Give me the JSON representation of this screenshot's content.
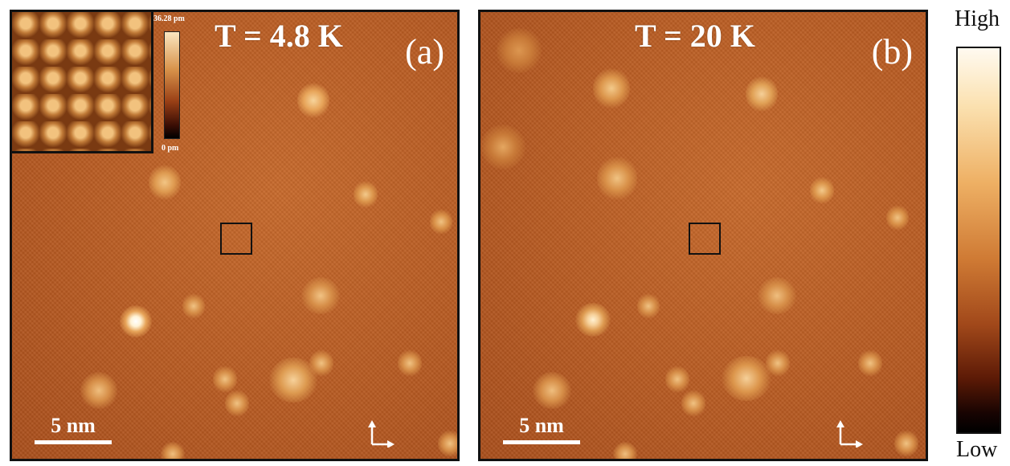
{
  "panels": [
    {
      "id": "a",
      "title": "T = 4.8 K",
      "label": "(a)",
      "scale_bar": "5 nm"
    },
    {
      "id": "b",
      "title": "T = 20 K",
      "label": "(b)",
      "scale_bar": "5 nm"
    }
  ],
  "inset": {
    "colorbar_max": "36.28 pm",
    "colorbar_min": "0 pm"
  },
  "colorbar": {
    "high": "High",
    "low": "Low"
  },
  "icons": {
    "axes": "xy-axes-arrows-icon"
  }
}
